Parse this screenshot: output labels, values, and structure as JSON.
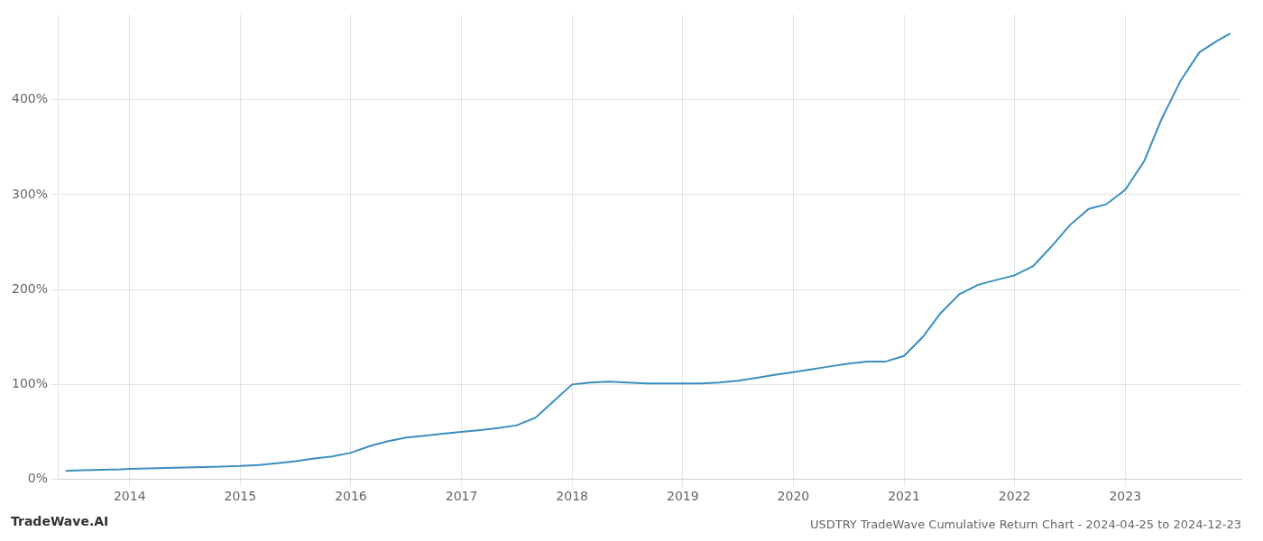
{
  "chart_data": {
    "type": "line",
    "title": "USDTRY TradeWave Cumulative Return Chart - 2024-04-25 to 2024-12-23",
    "annotations": [
      "TradeWave.AI"
    ],
    "color": "#3a8fbf",
    "grid": true,
    "x": [
      2013.42,
      2013.58,
      2013.75,
      2013.92,
      2014.0,
      2014.17,
      2014.33,
      2014.5,
      2014.67,
      2014.83,
      2015.0,
      2015.17,
      2015.33,
      2015.5,
      2015.67,
      2015.83,
      2016.0,
      2016.17,
      2016.33,
      2016.5,
      2016.67,
      2016.83,
      2017.0,
      2017.17,
      2017.33,
      2017.5,
      2017.67,
      2017.83,
      2018.0,
      2018.17,
      2018.33,
      2018.5,
      2018.67,
      2018.83,
      2019.0,
      2019.17,
      2019.33,
      2019.5,
      2019.67,
      2019.83,
      2020.0,
      2020.17,
      2020.33,
      2020.5,
      2020.67,
      2020.83,
      2021.0,
      2021.17,
      2021.33,
      2021.5,
      2021.67,
      2021.83,
      2022.0,
      2022.17,
      2022.33,
      2022.5,
      2022.67,
      2022.83,
      2023.0,
      2023.17,
      2023.33,
      2023.5,
      2023.67,
      2023.83,
      2023.95
    ],
    "values": [
      9,
      9.5,
      10,
      10.5,
      11,
      11.5,
      12,
      12.5,
      13,
      13.5,
      14,
      15,
      17,
      19,
      22,
      24,
      28,
      35,
      40,
      44,
      46,
      48,
      50,
      52,
      54,
      57,
      65,
      82,
      100,
      102,
      103,
      102,
      101,
      101,
      101,
      101,
      102,
      104,
      107,
      110,
      113,
      116,
      119,
      122,
      124,
      124,
      130,
      150,
      175,
      195,
      205,
      210,
      215,
      225,
      245,
      268,
      285,
      290,
      305,
      335,
      380,
      420,
      450,
      462,
      470
    ],
    "xlim": [
      2013.35,
      2024.05
    ],
    "xticks": [
      2014,
      2015,
      2016,
      2017,
      2018,
      2019,
      2020,
      2021,
      2022,
      2023
    ],
    "ylim": [
      0,
      490
    ],
    "yticks": [
      {
        "value": 0,
        "label": "0%"
      },
      {
        "value": 100,
        "label": "100%"
      },
      {
        "value": 200,
        "label": "200%"
      },
      {
        "value": 300,
        "label": "300%"
      },
      {
        "value": 400,
        "label": "400%"
      }
    ]
  }
}
